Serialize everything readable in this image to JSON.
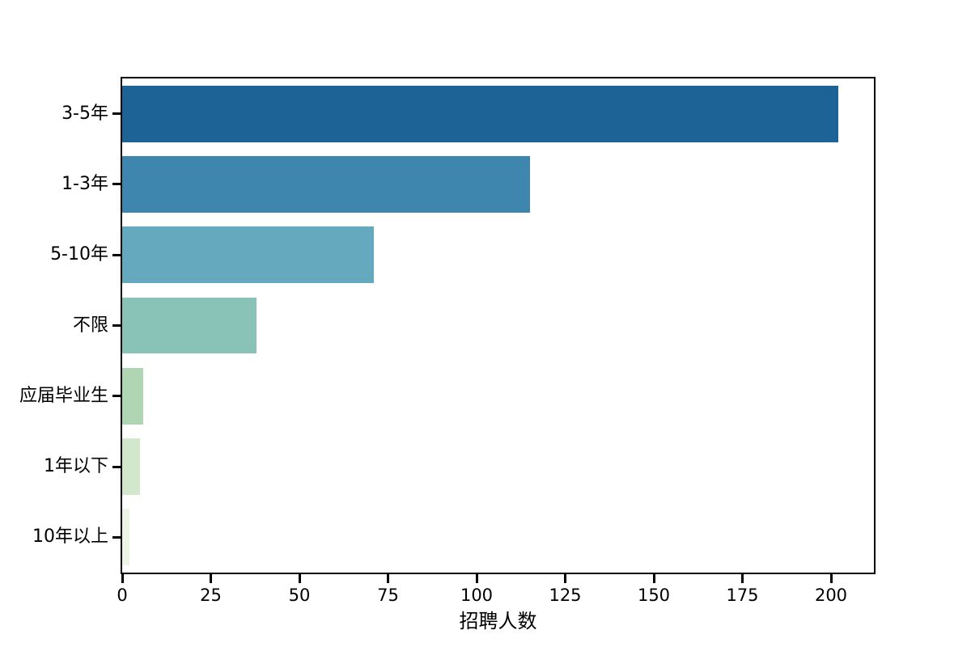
{
  "page": {
    "background_color": "#ffffff",
    "frame_color": "#000000"
  },
  "chart_data": {
    "type": "bar",
    "orientation": "horizontal",
    "title": "",
    "xlabel": "招聘人数",
    "ylabel": "",
    "categories": [
      "3-5年",
      "1-3年",
      "5-10年",
      "不限",
      "应届毕业生",
      "1年以下",
      "10年以上"
    ],
    "values": [
      202,
      115,
      71,
      38,
      6,
      5,
      2
    ],
    "bar_colors": [
      "#1e6396",
      "#3e86ad",
      "#65a9bf",
      "#89c2b7",
      "#b0d5b2",
      "#d3e7cc",
      "#edf5e6"
    ],
    "x_ticks": [
      0,
      25,
      50,
      75,
      100,
      125,
      150,
      175,
      200
    ],
    "xlim": [
      0,
      212.1
    ],
    "bar_fill_fraction": 0.8,
    "grid": false,
    "legend": null
  }
}
